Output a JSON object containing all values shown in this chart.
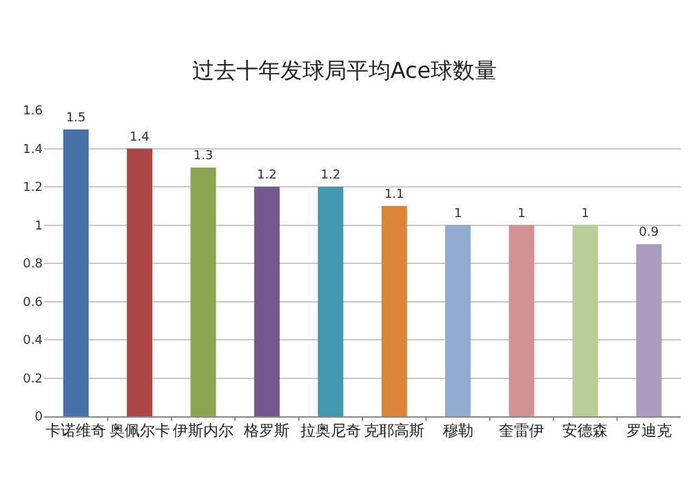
{
  "chart_data": {
    "type": "bar",
    "title": "过去十年发球局平均Ace球数量",
    "categories": [
      "卡诺维奇",
      "奥佩尔卡",
      "伊斯内尔",
      "格罗斯",
      "拉奥尼奇",
      "克耶高斯",
      "穆勒",
      "奎雷伊",
      "安德森",
      "罗迪克"
    ],
    "values": [
      1.5,
      1.4,
      1.3,
      1.2,
      1.2,
      1.1,
      1,
      1,
      1,
      0.9
    ],
    "colors": [
      "#4672a8",
      "#aa4643",
      "#89a54e",
      "#71588f",
      "#4198af",
      "#db843d",
      "#93a9cf",
      "#d19392",
      "#b9cd96",
      "#a99bbd"
    ],
    "ylim": [
      0,
      1.6
    ],
    "yticks": [
      0,
      0.2,
      0.4,
      0.6,
      0.8,
      1,
      1.2,
      1.4,
      1.6
    ],
    "grid": "y",
    "data_labels": true
  }
}
